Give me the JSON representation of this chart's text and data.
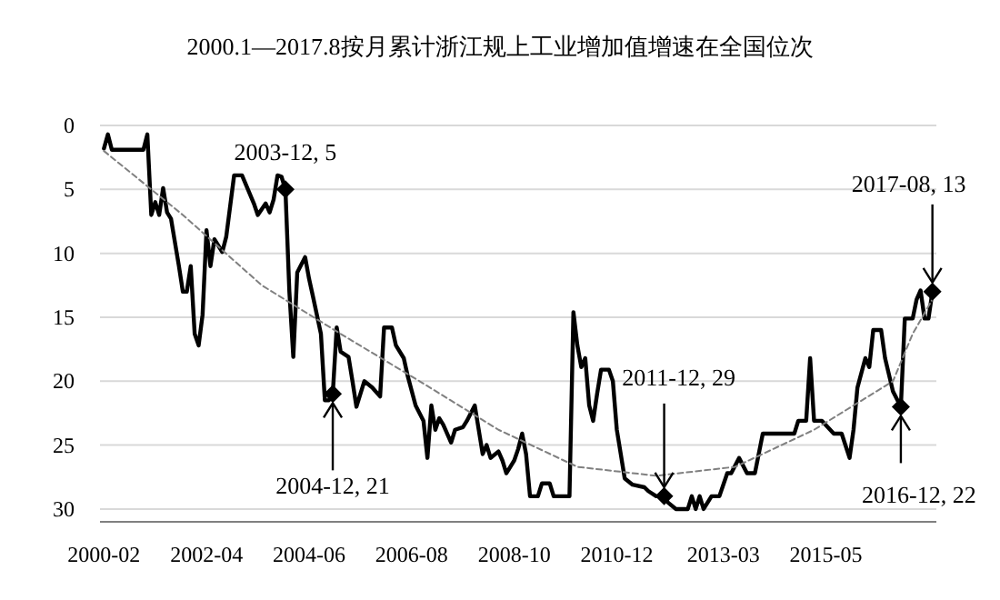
{
  "chart_data": {
    "type": "line",
    "title": "2000.1—2017.8按月累计浙江规上工业增加值增速在全国位次",
    "xlim": [
      "2000-01",
      "2017-09"
    ],
    "ylim": [
      31,
      0
    ],
    "xticks": [
      "2000-02",
      "2002-04",
      "2004-06",
      "2006-08",
      "2008-10",
      "2010-12",
      "2013-03",
      "2015-05"
    ],
    "yticks": [
      0,
      5,
      10,
      15,
      20,
      25,
      30
    ],
    "grid": "y",
    "series": [
      {
        "color": "#000000",
        "line_style": "solid",
        "x": [
          "2000-02",
          "2000-03",
          "2000-04",
          "2000-12",
          "2001-01",
          "2001-02",
          "2001-03",
          "2001-04",
          "2001-05",
          "2001-06",
          "2001-07",
          "2001-09",
          "2001-10",
          "2001-11",
          "2001-12",
          "2002-01",
          "2002-02",
          "2002-03",
          "2002-04",
          "2002-05",
          "2002-06",
          "2002-08",
          "2002-09",
          "2002-10",
          "2002-11",
          "2003-01",
          "2003-04",
          "2003-05",
          "2003-07",
          "2003-08",
          "2003-09",
          "2003-10",
          "2003-11",
          "2003-12",
          "2004-01",
          "2004-02",
          "2004-03",
          "2004-05",
          "2004-06",
          "2004-07",
          "2004-09",
          "2004-10",
          "2004-11",
          "2004-12",
          "2005-01",
          "2005-02",
          "2005-04",
          "2005-05",
          "2005-06",
          "2005-08",
          "2005-10",
          "2005-12",
          "2006-01",
          "2006-03",
          "2006-04",
          "2006-06",
          "2006-07",
          "2006-09",
          "2006-11",
          "2006-12",
          "2007-01",
          "2007-02",
          "2007-03",
          "2007-04",
          "2007-06",
          "2007-07",
          "2007-09",
          "2007-10",
          "2007-12",
          "2008-01",
          "2008-02",
          "2008-03",
          "2008-04",
          "2008-06",
          "2008-07",
          "2008-08",
          "2008-10",
          "2008-11",
          "2008-12",
          "2009-01",
          "2009-02",
          "2009-04",
          "2009-05",
          "2009-07",
          "2009-08",
          "2009-12",
          "2010-01",
          "2010-02",
          "2010-03",
          "2010-04",
          "2010-05",
          "2010-06",
          "2010-07",
          "2010-08",
          "2010-10",
          "2010-11",
          "2010-12",
          "2011-01",
          "2011-02",
          "2011-04",
          "2011-07",
          "2011-08",
          "2011-10",
          "2011-12",
          "2012-01",
          "2012-03",
          "2012-06",
          "2012-07",
          "2012-08",
          "2012-09",
          "2012-10",
          "2012-12",
          "2013-02",
          "2013-04",
          "2013-05",
          "2013-07",
          "2013-09",
          "2013-11",
          "2014-01",
          "2014-09",
          "2014-10",
          "2014-12",
          "2015-01",
          "2015-02",
          "2015-04",
          "2015-07",
          "2015-09",
          "2015-11",
          "2015-12",
          "2016-01",
          "2016-03",
          "2016-04",
          "2016-05",
          "2016-07",
          "2016-08",
          "2016-10",
          "2016-12",
          "2017-01",
          "2017-03",
          "2017-04",
          "2017-05",
          "2017-06",
          "2017-07",
          "2017-08"
        ],
        "values": [
          1.8,
          0.7,
          1.9,
          1.9,
          0.7,
          7,
          6,
          7,
          4.9,
          6.8,
          7.3,
          11,
          13,
          13,
          11,
          16.3,
          17.2,
          14.8,
          8.2,
          11,
          8.9,
          9.9,
          8.7,
          6.3,
          3.9,
          3.9,
          6.1,
          7,
          6.1,
          6.8,
          5.8,
          3.9,
          4,
          5,
          13,
          18.1,
          11.5,
          10.3,
          12,
          13.4,
          16.3,
          21.5,
          21.5,
          21,
          15.8,
          17.7,
          18.1,
          20,
          22,
          20,
          20.5,
          21.2,
          15.8,
          15.8,
          17.2,
          18.2,
          19.6,
          21.9,
          23.1,
          26,
          21.9,
          23.8,
          22.9,
          23.4,
          24.8,
          23.8,
          23.6,
          23.1,
          21.9,
          23.8,
          25.7,
          25,
          26,
          25.5,
          26.2,
          27.2,
          26.2,
          25.3,
          24.1,
          25.7,
          29,
          29,
          28,
          28,
          29,
          29,
          14.6,
          17.2,
          18.9,
          18.2,
          21.9,
          23.1,
          21,
          19.1,
          19.1,
          20,
          23.8,
          25.7,
          27.6,
          28.1,
          28.3,
          28.6,
          29,
          29,
          29.5,
          30,
          30,
          29,
          30,
          29,
          30,
          29,
          29,
          27.2,
          27.2,
          26,
          27.2,
          27.2,
          24.1,
          24.1,
          23.1,
          23.1,
          18.2,
          23.1,
          23.1,
          24.1,
          24.1,
          26,
          23.8,
          20.5,
          18.2,
          18.9,
          16,
          16,
          18.2,
          20.8,
          22,
          15.1,
          15.1,
          13.6,
          12.9,
          15.1,
          15.1,
          13
        ]
      },
      {
        "type": "line",
        "color": "#808080",
        "line_style": "dashed",
        "x": [
          "2000-02",
          "2001-10",
          "2003-06",
          "2005-02",
          "2006-10",
          "2008-06",
          "2010-02",
          "2011-10",
          "2013-06",
          "2015-02",
          "2016-10",
          "2017-03",
          "2017-08"
        ],
        "values": [
          2,
          7,
          12.5,
          16.3,
          20,
          23.8,
          26.7,
          27.4,
          26.7,
          23.8,
          20,
          16.3,
          13.6
        ]
      },
      {
        "type": "scatter",
        "color": "#000000",
        "marker": "diamond",
        "x": [
          "2003-12",
          "2004-12",
          "2011-12",
          "2016-12",
          "2017-08"
        ],
        "values": [
          5,
          21,
          29,
          22,
          13
        ]
      }
    ],
    "annotations": [
      {
        "text": "2003-12, 5",
        "x": "2003-12",
        "y": 5
      },
      {
        "text": "2004-12, 21",
        "x": "2004-12",
        "y": 21
      },
      {
        "text": "2011-12, 29",
        "x": "2011-12",
        "y": 29
      },
      {
        "text": "2016-12, 22",
        "x": "2016-12",
        "y": 22
      },
      {
        "text": "2017-08, 13",
        "x": "2017-08",
        "y": 13
      }
    ]
  }
}
